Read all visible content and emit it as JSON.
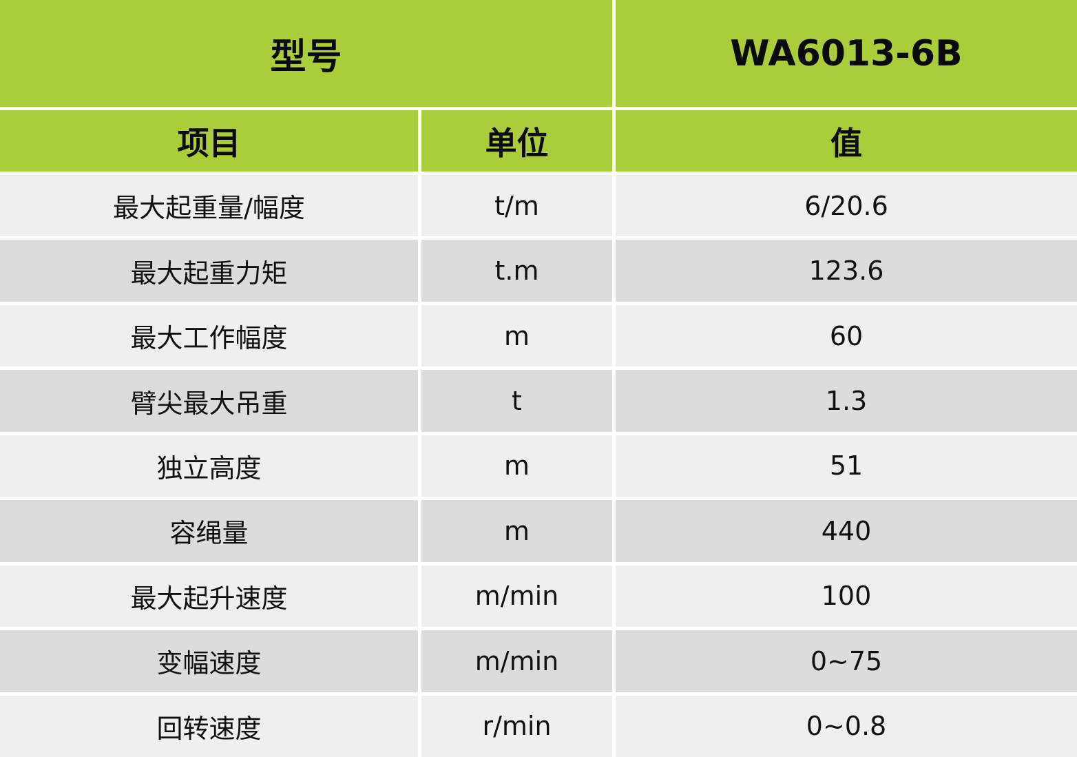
{
  "header": {
    "model_label": "型号",
    "model_value": "WA6013-6B",
    "col_item": "项目",
    "col_unit": "单位",
    "col_value": "值"
  },
  "colors": {
    "header_green": "#aacd3a",
    "row_light": "#efefef",
    "row_dark": "#dcdcdc"
  },
  "rows": [
    {
      "item": "最大起重量/幅度",
      "unit": "t/m",
      "value": "6/20.6"
    },
    {
      "item": "最大起重力矩",
      "unit": "t.m",
      "value": "123.6"
    },
    {
      "item": "最大工作幅度",
      "unit": "m",
      "value": "60"
    },
    {
      "item": "臂尖最大吊重",
      "unit": "t",
      "value": "1.3"
    },
    {
      "item": "独立高度",
      "unit": "m",
      "value": "51"
    },
    {
      "item": "容绳量",
      "unit": "m",
      "value": "440"
    },
    {
      "item": "最大起升速度",
      "unit": "m/min",
      "value": "100"
    },
    {
      "item": "变幅速度",
      "unit": "m/min",
      "value": "0~75"
    },
    {
      "item": "回转速度",
      "unit": "r/min",
      "value": "0~0.8"
    }
  ]
}
